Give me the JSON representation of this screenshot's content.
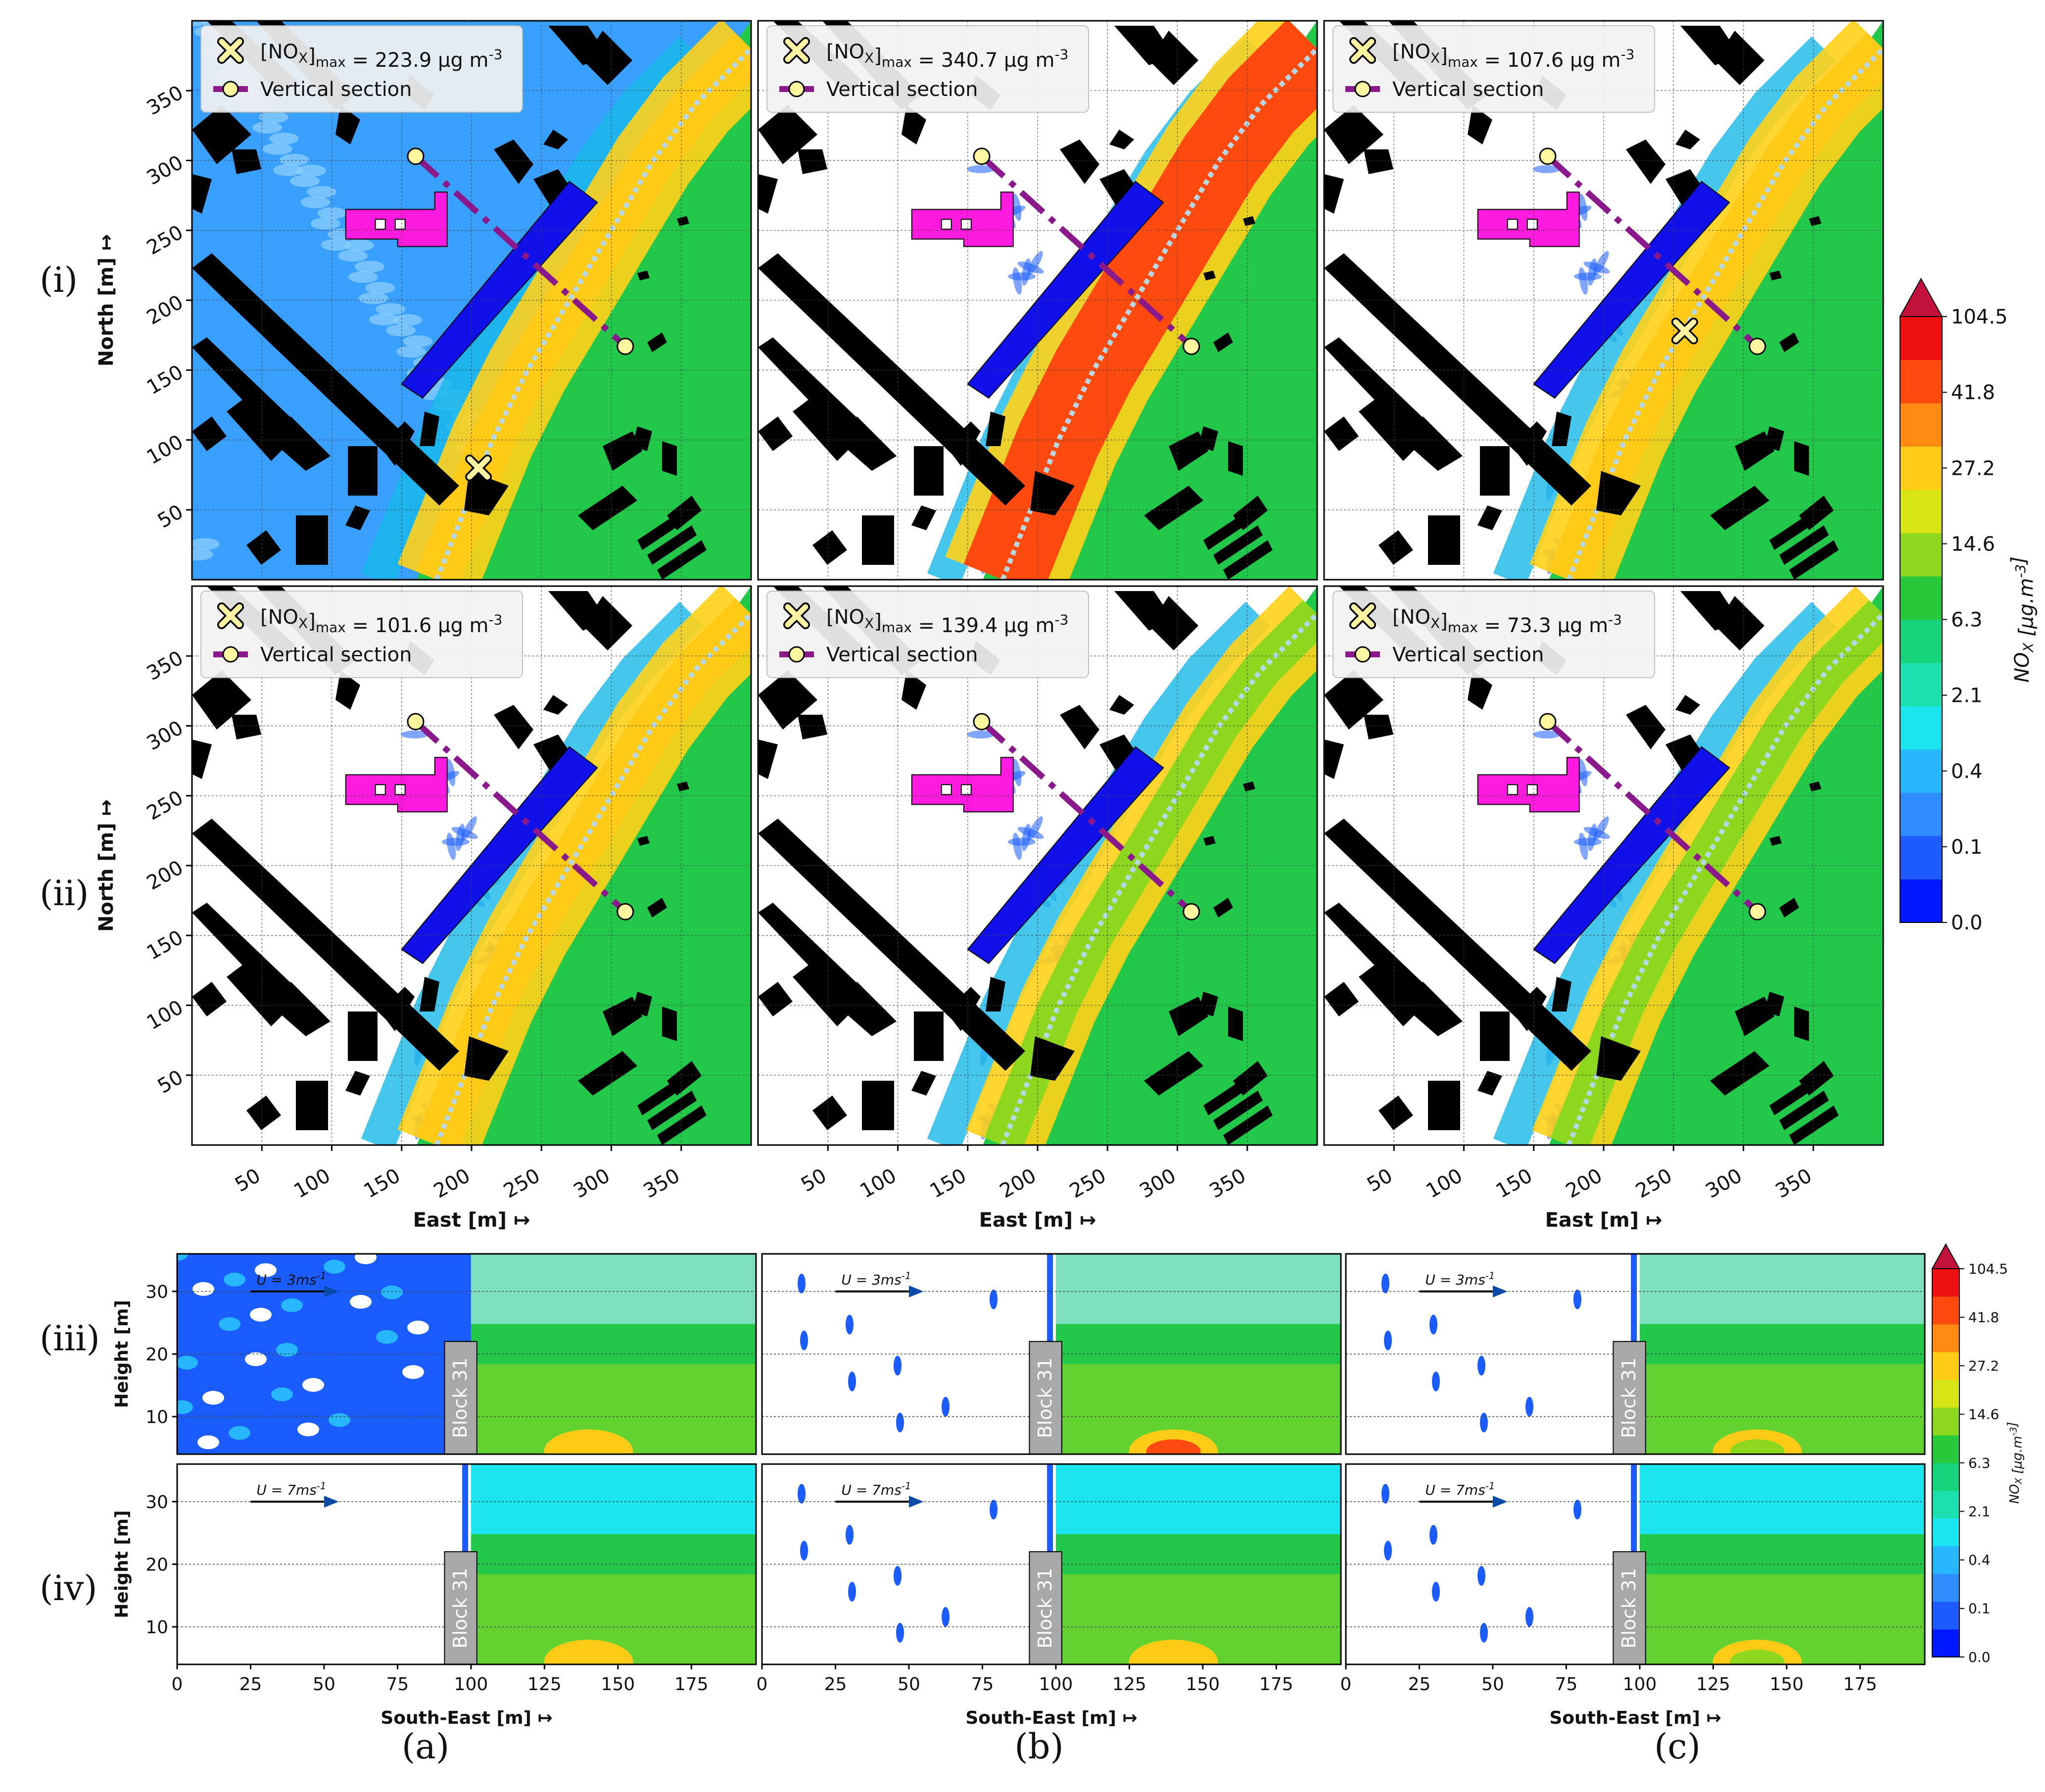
{
  "figure": {
    "row_labels": [
      "(i)",
      "(ii)",
      "(iii)",
      "(iv)"
    ],
    "column_labels": [
      "(a)",
      "(b)",
      "(c)"
    ]
  },
  "legend": {
    "max_marker_icon": "x-marker-icon",
    "section_icon": "circle-line-marker-icon",
    "section_label": "Vertical section"
  },
  "chart_data": [
    {
      "type": "heatmap",
      "name": "horizontal NOx maps",
      "xlabel": "East [m] ↦",
      "ylabel": "North [m] ↦",
      "xticks": [
        50,
        100,
        150,
        200,
        250,
        300,
        350
      ],
      "yticks": [
        50,
        100,
        150,
        200,
        250,
        300,
        350
      ],
      "xlim": [
        0,
        400
      ],
      "ylim": [
        0,
        400
      ],
      "grid": true,
      "panels": [
        {
          "row": "(i)",
          "col": "(a)",
          "max_label": "[NO_X]_max = 223.9 μg m^-3",
          "max_value": 223.9,
          "max_marker": [
            205,
            80
          ],
          "background_level": "0.4",
          "road_level": "41.8"
        },
        {
          "row": "(i)",
          "col": "(b)",
          "max_label": "[NO_X]_max = 340.7 μg m^-3",
          "max_value": 340.7,
          "background_level": "0.0",
          "road_level": "104.5"
        },
        {
          "row": "(i)",
          "col": "(c)",
          "max_label": "[NO_X]_max = 107.6 μg m^-3",
          "max_value": 107.6,
          "max_marker": [
            258,
            178
          ],
          "background_level": "0.0",
          "road_level": "41.8"
        },
        {
          "row": "(ii)",
          "col": "(a)",
          "max_label": "[NO_X]_max = 101.6 μg m^-3",
          "max_value": 101.6,
          "background_level": "0.0",
          "road_level": "41.8"
        },
        {
          "row": "(ii)",
          "col": "(b)",
          "max_label": "[NO_X]_max = 139.4 μg m^-3",
          "max_value": 139.4,
          "background_level": "0.0",
          "road_level": "27.2"
        },
        {
          "row": "(ii)",
          "col": "(c)",
          "max_label": "[NO_X]_max = 73.3 μg m^-3",
          "max_value": 73.3,
          "background_level": "0.0",
          "road_level": "27.2"
        }
      ],
      "vertical_section": {
        "start": [
          160,
          303
        ],
        "end": [
          310,
          167
        ]
      },
      "colorbar": {
        "label": "NO_X [μg.m^-3]",
        "ticks": [
          "104.5",
          "41.8",
          "27.2",
          "14.6",
          "6.3",
          "2.1",
          "0.4",
          "0.1",
          "0.0"
        ],
        "colors": [
          "#0018ff",
          "#1e5cff",
          "#2f8dff",
          "#27b7ff",
          "#1be6f0",
          "#1ce0b0",
          "#17d37a",
          "#27c93b",
          "#8dd81f",
          "#d7e514",
          "#ffcb17",
          "#ff8a12",
          "#ff4a0f",
          "#ee1010"
        ],
        "extend_color": "#c2123c"
      }
    },
    {
      "type": "heatmap",
      "name": "vertical sections",
      "xlabel": "South-East [m] ↦",
      "ylabel": "Height [m]",
      "xticks": [
        0,
        25,
        50,
        75,
        100,
        125,
        150,
        175
      ],
      "yticks": [
        10,
        20,
        30
      ],
      "xlim": [
        0,
        197
      ],
      "ylim": [
        4,
        36
      ],
      "building_label": "Block 31",
      "building": {
        "x0": 91,
        "x1": 102,
        "height": 22
      },
      "panels": [
        {
          "row": "(iii)",
          "col": "(a)",
          "wind_label": "U = 3ms^-1",
          "wind_speed": 3,
          "left_field": "blue",
          "hotspot_level": "41.8"
        },
        {
          "row": "(iii)",
          "col": "(b)",
          "wind_label": "U = 3ms^-1",
          "wind_speed": 3,
          "left_field": "sparse",
          "hotspot_level": "104.5"
        },
        {
          "row": "(iii)",
          "col": "(c)",
          "wind_label": "U = 3ms^-1",
          "wind_speed": 3,
          "left_field": "sparse",
          "hotspot_level": "27.2"
        },
        {
          "row": "(iv)",
          "col": "(a)",
          "wind_label": "U = 7ms^-1",
          "wind_speed": 7,
          "left_field": "empty",
          "hotspot_level": "41.8"
        },
        {
          "row": "(iv)",
          "col": "(b)",
          "wind_label": "U = 7ms^-1",
          "wind_speed": 7,
          "left_field": "sparse",
          "hotspot_level": "41.8"
        },
        {
          "row": "(iv)",
          "col": "(c)",
          "wind_label": "U = 7ms^-1",
          "wind_speed": 7,
          "left_field": "sparse",
          "hotspot_level": "27.2"
        }
      ],
      "colorbar": {
        "label": "NO_X [μg.m^-3]",
        "ticks": [
          "104.5",
          "41.8",
          "27.2",
          "14.6",
          "6.3",
          "2.1",
          "0.4",
          "0.1",
          "0.0"
        ]
      }
    }
  ]
}
